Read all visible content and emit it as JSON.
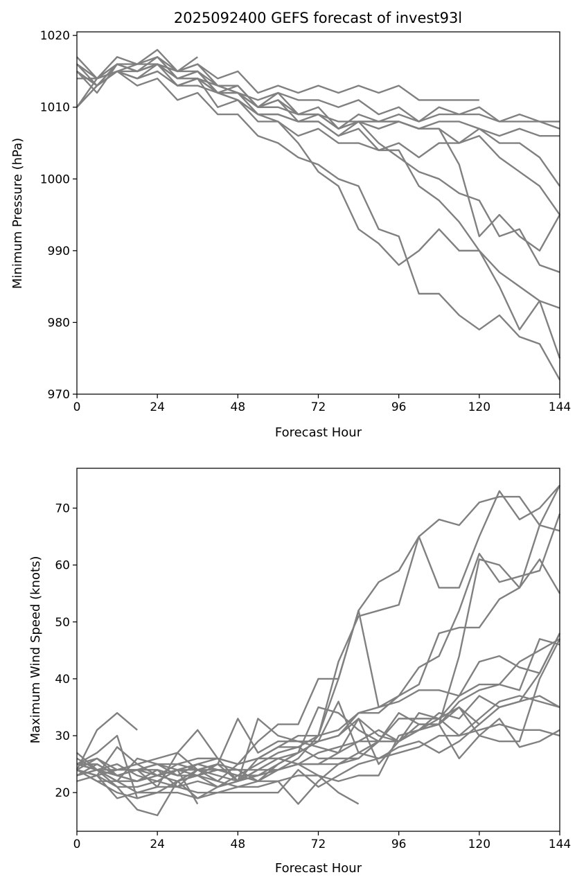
{
  "chart_data": [
    {
      "type": "line",
      "title": "2025092400 GEFS forecast of invest93l",
      "xlabel": "Forecast Hour",
      "ylabel": "Minimum Pressure (hPa)",
      "xlim": [
        0,
        144
      ],
      "ylim": [
        970,
        1020.5
      ],
      "xticks": [
        0,
        24,
        48,
        72,
        96,
        120,
        144
      ],
      "yticks": [
        970,
        980,
        990,
        1000,
        1010,
        1020
      ],
      "grid": false,
      "line_color": "#808080",
      "x": [
        0,
        6,
        12,
        18,
        24,
        30,
        36,
        42,
        48,
        54,
        60,
        66,
        72,
        78,
        84,
        90,
        96,
        102,
        108,
        114,
        120,
        126,
        132,
        138,
        144
      ],
      "series": [
        {
          "values": [
            1017,
            1014,
            1017,
            1016,
            1018,
            1015,
            1016,
            1014,
            1015,
            1012,
            1013,
            1012,
            1013,
            1012,
            1013,
            1012,
            1013,
            1011,
            1011,
            1011,
            1011,
            null,
            null,
            null,
            null
          ]
        },
        {
          "values": [
            1016,
            1014,
            1016,
            1016,
            1017,
            1015,
            1016,
            1013,
            1012,
            1011,
            1012,
            1011,
            1011,
            1010,
            1011,
            1009,
            1010,
            1008,
            1010,
            1009,
            1010,
            1008,
            1009,
            1008,
            1007
          ]
        },
        {
          "values": [
            1015,
            1013,
            1016,
            1015,
            1016,
            1014,
            1015,
            1013,
            1013,
            1010,
            1011,
            1009,
            1010,
            1007,
            1009,
            1008,
            1009,
            1008,
            1009,
            1009,
            1009,
            1008,
            1008,
            1008,
            1008
          ]
        },
        {
          "values": [
            1016,
            1013,
            1015,
            1014,
            1016,
            1014,
            1014,
            1013,
            1012,
            1010,
            1010,
            1009,
            1009,
            1007,
            1008,
            1008,
            1008,
            1007,
            1008,
            1008,
            1007,
            1006,
            1007,
            1006,
            1006
          ]
        },
        {
          "values": [
            1015,
            1012,
            1016,
            1015,
            1017,
            1014,
            1015,
            1012,
            1012,
            1010,
            1011,
            1008,
            1008,
            1006,
            1008,
            1007,
            1008,
            1007,
            1007,
            1005,
            1007,
            1005,
            1005,
            1003,
            999
          ]
        },
        {
          "values": [
            1015,
            1013,
            1016,
            1015,
            1016,
            1013,
            1014,
            1012,
            1011,
            1009,
            1009,
            1008,
            1008,
            1006,
            1007,
            1004,
            1005,
            1003,
            1005,
            1005,
            1006,
            1003,
            1001,
            999,
            995
          ]
        },
        {
          "values": [
            1010,
            1014,
            1016,
            1015,
            1016,
            1014,
            1014,
            1012,
            1012,
            1009,
            1009,
            1008,
            1009,
            1008,
            1008,
            1008,
            1008,
            1007,
            1007,
            1002,
            992,
            995,
            992,
            990,
            995
          ]
        },
        {
          "values": [
            1014,
            1014,
            1015,
            1015,
            1016,
            1015,
            1015,
            1012,
            1013,
            1010,
            1012,
            1009,
            1009,
            1007,
            1008,
            1005,
            1003,
            1001,
            1000,
            998,
            997,
            992,
            993,
            988,
            987
          ]
        },
        {
          "values": [
            1010,
            1013,
            1015,
            1014,
            1015,
            1013,
            1014,
            1010,
            1011,
            1008,
            1008,
            1006,
            1007,
            1005,
            1005,
            1004,
            1004,
            999,
            997,
            994,
            990,
            987,
            985,
            983,
            982
          ]
        },
        {
          "values": [
            1010,
            1013,
            1015,
            1013,
            1014,
            1011,
            1012,
            1009,
            1009,
            1006,
            1005,
            1003,
            1002,
            1000,
            999,
            993,
            992,
            984,
            984,
            981,
            979,
            981,
            978,
            977,
            972
          ]
        },
        {
          "values": [
            1015,
            1013,
            1015,
            1014,
            1015,
            1013,
            1013,
            1012,
            1011,
            1009,
            1008,
            1005,
            1001,
            999,
            993,
            991,
            988,
            990,
            993,
            990,
            990,
            985,
            979,
            983,
            975
          ]
        },
        {
          "values": [
            1016,
            1014,
            1015,
            1016,
            1016,
            1015,
            1017,
            null,
            null,
            null,
            null,
            null,
            null,
            null,
            null,
            null,
            null,
            null,
            null,
            null,
            null,
            null,
            null,
            null,
            null
          ]
        }
      ]
    },
    {
      "type": "line",
      "title": "",
      "xlabel": "Forecast Hour",
      "ylabel": "Maximum Wind Speed (knots)",
      "xlim": [
        0,
        144
      ],
      "ylim": [
        13.2,
        77
      ],
      "xticks": [
        0,
        24,
        48,
        72,
        96,
        120,
        144
      ],
      "yticks": [
        20,
        30,
        40,
        50,
        60,
        70
      ],
      "grid": false,
      "line_color": "#808080",
      "x": [
        0,
        6,
        12,
        18,
        24,
        30,
        36,
        42,
        48,
        54,
        60,
        66,
        72,
        78,
        84,
        90,
        96,
        102,
        108,
        114,
        120,
        126,
        132,
        138,
        144
      ],
      "series": [
        {
          "values": [
            24,
            31,
            34,
            31,
            null,
            null,
            null,
            null,
            null,
            null,
            null,
            null,
            null,
            null,
            null,
            null,
            null,
            null,
            null,
            null,
            null,
            null,
            null,
            null,
            null
          ]
        },
        {
          "values": [
            27,
            24,
            23,
            22,
            23,
            24,
            24,
            23,
            22,
            24,
            24,
            26,
            30,
            40,
            52,
            57,
            59,
            65,
            56,
            56,
            65,
            73,
            68,
            70,
            74
          ]
        },
        {
          "values": [
            26,
            24,
            22,
            22,
            24,
            23,
            25,
            24,
            23,
            25,
            27,
            28,
            30,
            43,
            51,
            52,
            53,
            65,
            68,
            67,
            71,
            72,
            72,
            67,
            66
          ]
        },
        {
          "values": [
            25,
            27,
            30,
            19,
            20,
            22,
            24,
            25,
            24,
            22,
            25,
            27,
            35,
            34,
            31,
            29,
            29,
            31,
            32,
            44,
            61,
            60,
            56,
            67,
            74
          ]
        },
        {
          "values": [
            23,
            24,
            25,
            23,
            22,
            24,
            23,
            25,
            33,
            27,
            29,
            29,
            29,
            30,
            34,
            34,
            37,
            42,
            44,
            52,
            62,
            57,
            58,
            59,
            69
          ]
        },
        {
          "values": [
            25,
            26,
            24,
            24,
            23,
            25,
            24,
            25,
            22,
            26,
            28,
            30,
            30,
            31,
            34,
            35,
            37,
            39,
            48,
            49,
            49,
            54,
            56,
            61,
            55
          ]
        },
        {
          "values": [
            24,
            23,
            24,
            25,
            26,
            27,
            24,
            22,
            25,
            29,
            32,
            32,
            40,
            40,
            52,
            35,
            36,
            38,
            38,
            37,
            43,
            44,
            42,
            41,
            48
          ]
        },
        {
          "values": [
            25,
            24,
            22,
            20,
            21,
            21,
            24,
            24,
            23,
            23,
            25,
            27,
            29,
            36,
            27,
            29,
            33,
            33,
            33,
            37,
            39,
            39,
            38,
            47,
            46
          ]
        },
        {
          "values": [
            24,
            22,
            20,
            19,
            20,
            20,
            19,
            21,
            22,
            23,
            24,
            25,
            27,
            28,
            29,
            29,
            34,
            32,
            32,
            36,
            38,
            39,
            43,
            45,
            47
          ]
        },
        {
          "values": [
            22,
            23,
            19,
            20,
            20,
            22,
            23,
            22,
            21,
            22,
            22,
            18,
            22,
            25,
            27,
            26,
            27,
            28,
            30,
            30,
            33,
            36,
            37,
            36,
            35
          ]
        },
        {
          "values": [
            23,
            25,
            23,
            24,
            24,
            21,
            20,
            20,
            20,
            20,
            20,
            24,
            21,
            23,
            25,
            26,
            28,
            29,
            27,
            29,
            32,
            35,
            36,
            37,
            35
          ]
        },
        {
          "values": [
            24,
            23,
            21,
            17,
            16,
            22,
            23,
            21,
            23,
            22,
            24,
            25,
            25,
            25,
            26,
            29,
            29,
            32,
            32,
            26,
            30,
            29,
            29,
            40,
            47
          ]
        },
        {
          "values": [
            24,
            26,
            23,
            22,
            23,
            22,
            19,
            20,
            21,
            21,
            22,
            23,
            23,
            22,
            23,
            23,
            30,
            31,
            32,
            35,
            30,
            33,
            28,
            29,
            31
          ]
        },
        {
          "values": [
            25,
            24,
            21,
            21,
            22,
            21,
            22,
            21,
            22,
            24,
            26,
            25,
            25,
            27,
            29,
            31,
            29,
            31,
            34,
            33,
            37,
            35,
            36,
            41,
            48
          ]
        },
        {
          "values": [
            24,
            22,
            22,
            26,
            25,
            24,
            25,
            26,
            25,
            26,
            26,
            27,
            29,
            30,
            33,
            30,
            29,
            34,
            33,
            35,
            32,
            null,
            null,
            null,
            null
          ]
        },
        {
          "values": [
            25,
            24,
            24,
            24,
            25,
            25,
            26,
            26,
            25,
            26,
            28,
            28,
            26,
            26,
            26,
            29,
            null,
            null,
            null,
            null,
            null,
            null,
            null,
            null,
            null
          ]
        },
        {
          "values": [
            23,
            24,
            23,
            24,
            25,
            23,
            23,
            24,
            24,
            24,
            26,
            25,
            23,
            20,
            18,
            null,
            null,
            null,
            null,
            null,
            null,
            null,
            null,
            null,
            null
          ]
        },
        {
          "values": [
            24,
            23,
            28,
            25,
            23,
            24,
            18,
            null,
            null,
            null,
            null,
            null,
            null,
            null,
            null,
            null,
            null,
            null,
            null,
            null,
            null,
            null,
            null,
            null,
            null
          ]
        },
        {
          "values": [
            25,
            25,
            23,
            24,
            21,
            27,
            31,
            26,
            22,
            33,
            30,
            29,
            28,
            27,
            33,
            25,
            29,
            31,
            33,
            30,
            31,
            32,
            31,
            31,
            30
          ]
        }
      ]
    }
  ]
}
